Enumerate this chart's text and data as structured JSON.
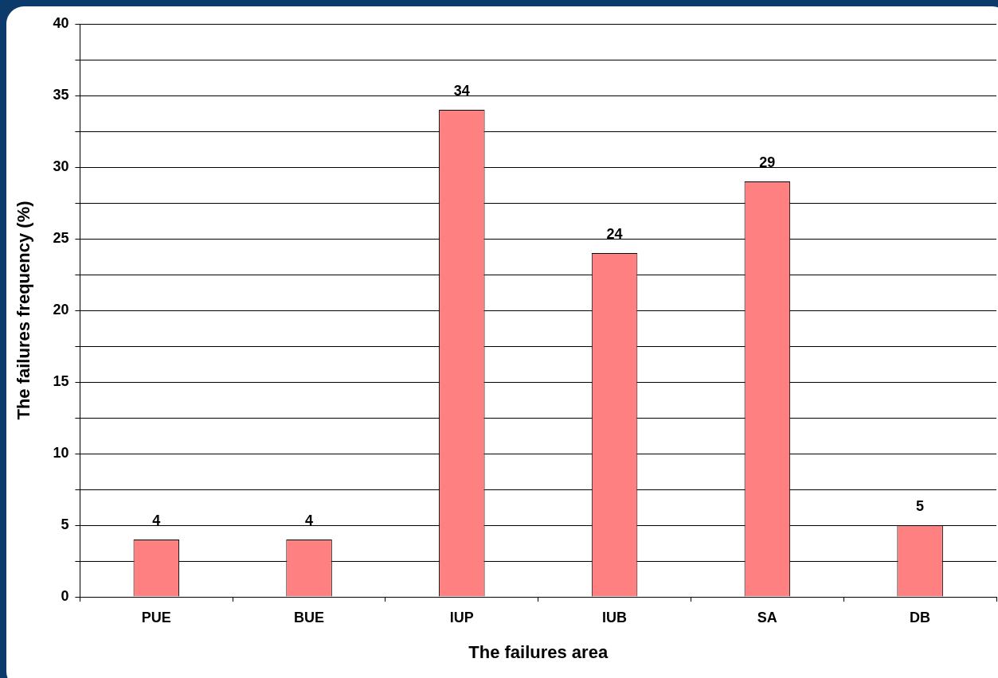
{
  "chart_data": {
    "type": "bar",
    "xlabel": "The failures area",
    "ylabel": "The failures frequency (%)",
    "categories": [
      "PUE",
      "BUE",
      "IUP",
      "IUB",
      "SA",
      "DB"
    ],
    "values": [
      4,
      4,
      34,
      24,
      29,
      5
    ],
    "color": "#ff8080",
    "ylim": [
      0,
      40
    ],
    "yticks": [
      0,
      {
        "value": 2.5,
        "label": null
      },
      5,
      {
        "value": 7.5,
        "label": null
      },
      10,
      {
        "value": 12.5,
        "label": null
      },
      15,
      {
        "value": 17.5,
        "label": null
      },
      20,
      {
        "value": 22.5,
        "label": null
      },
      25,
      {
        "value": 27.5,
        "label": null
      },
      30,
      {
        "value": 32.5,
        "label": null
      },
      35,
      {
        "value": 37.5,
        "label": null
      },
      40
    ],
    "grid": "y",
    "legend": false,
    "data_labels": true
  }
}
